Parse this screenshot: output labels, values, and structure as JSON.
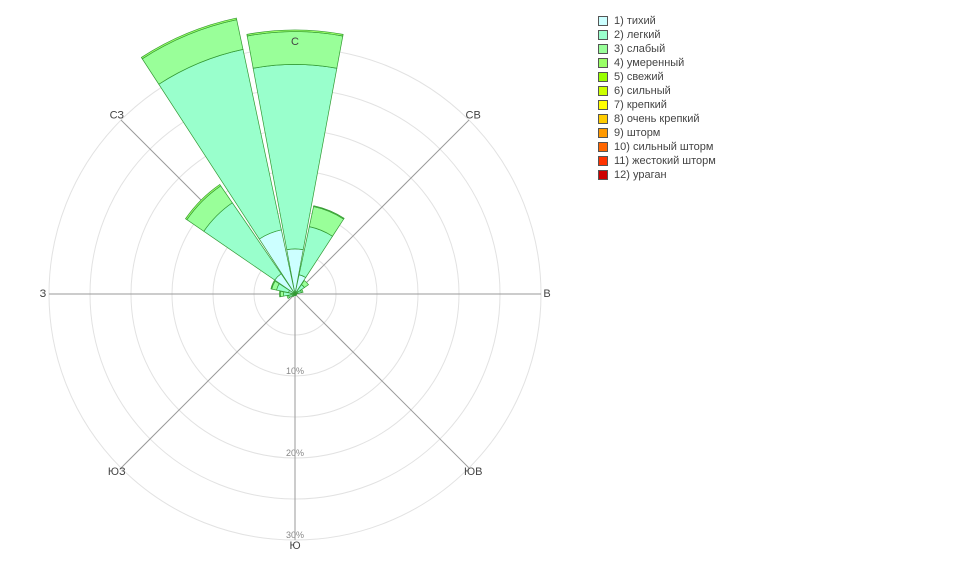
{
  "chart_data": {
    "type": "windrose",
    "directions": [
      "С",
      "СВ",
      "В",
      "ЮВ",
      "Ю",
      "ЮЗ",
      "З",
      "СЗ"
    ],
    "direction_angles_deg": [
      0,
      45,
      90,
      135,
      180,
      225,
      270,
      315
    ],
    "sector_centers_deg": [
      0,
      22.5,
      45,
      67.5,
      90,
      112.5,
      135,
      157.5,
      180,
      202.5,
      225,
      247.5,
      270,
      292.5,
      315,
      337.5
    ],
    "radial_unit": "%",
    "radial_max": 30,
    "radial_tick_labels": [
      "10%",
      "20%",
      "30%"
    ],
    "grid": true,
    "legend_position": "right",
    "series": [
      {
        "name": "1) тихий",
        "color": "#ccffff",
        "values": [
          5.5,
          2.4,
          0.4,
          0.3,
          0.1,
          0.1,
          0.1,
          0.1,
          0.1,
          0.1,
          0.2,
          0.3,
          0.5,
          0.8,
          3.0,
          8.0
        ]
      },
      {
        "name": "2) легкий",
        "color": "#99ffcc",
        "values": [
          22.5,
          6.0,
          1.0,
          0.5,
          0.1,
          0.1,
          0.1,
          0.1,
          0.1,
          0.1,
          0.2,
          0.5,
          0.9,
          1.5,
          10.5,
          22.5
        ]
      },
      {
        "name": "3) слабый",
        "color": "#99ff99",
        "values": [
          4.0,
          2.5,
          0.6,
          0.2,
          0.0,
          0.0,
          0.0,
          0.0,
          0.0,
          0.0,
          0.0,
          0.2,
          0.4,
          0.6,
          2.5,
          3.7
        ]
      },
      {
        "name": "4) умеренный",
        "color": "#99ff66",
        "values": [
          0.2,
          0.1,
          0.0,
          0.0,
          0.0,
          0.0,
          0.0,
          0.0,
          0.0,
          0.0,
          0.0,
          0.0,
          0.1,
          0.1,
          0.2,
          0.2
        ]
      },
      {
        "name": "5) свежий",
        "color": "#99ff00",
        "values": [
          0,
          0,
          0,
          0,
          0,
          0,
          0,
          0,
          0,
          0,
          0,
          0,
          0,
          0,
          0,
          0
        ]
      },
      {
        "name": "6) сильный",
        "color": "#ccff00",
        "values": [
          0,
          0,
          0,
          0,
          0,
          0,
          0,
          0,
          0,
          0,
          0,
          0,
          0,
          0,
          0,
          0
        ]
      },
      {
        "name": "7) крепкий",
        "color": "#ffff00",
        "values": [
          0,
          0,
          0,
          0,
          0,
          0,
          0,
          0,
          0,
          0,
          0,
          0,
          0,
          0,
          0,
          0
        ]
      },
      {
        "name": "8) очень крепкий",
        "color": "#ffcc00",
        "values": [
          0,
          0,
          0,
          0,
          0,
          0,
          0,
          0,
          0,
          0,
          0,
          0,
          0,
          0,
          0,
          0
        ]
      },
      {
        "name": "9) шторм",
        "color": "#ff9900",
        "values": [
          0,
          0,
          0,
          0,
          0,
          0,
          0,
          0,
          0,
          0,
          0,
          0,
          0,
          0,
          0,
          0
        ]
      },
      {
        "name": "10) сильный шторм",
        "color": "#ff6600",
        "values": [
          0,
          0,
          0,
          0,
          0,
          0,
          0,
          0,
          0,
          0,
          0,
          0,
          0,
          0,
          0,
          0
        ]
      },
      {
        "name": "11) жестокий шторм",
        "color": "#ff3300",
        "values": [
          0,
          0,
          0,
          0,
          0,
          0,
          0,
          0,
          0,
          0,
          0,
          0,
          0,
          0,
          0,
          0
        ]
      },
      {
        "name": "12) ураган",
        "color": "#cc0000",
        "values": [
          0,
          0,
          0,
          0,
          0,
          0,
          0,
          0,
          0,
          0,
          0,
          0,
          0,
          0,
          0,
          0
        ]
      }
    ]
  }
}
